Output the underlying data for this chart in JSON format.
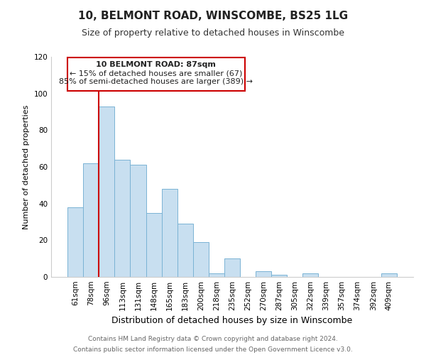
{
  "title": "10, BELMONT ROAD, WINSCOMBE, BS25 1LG",
  "subtitle": "Size of property relative to detached houses in Winscombe",
  "xlabel": "Distribution of detached houses by size in Winscombe",
  "ylabel": "Number of detached properties",
  "bar_labels": [
    "61sqm",
    "78sqm",
    "96sqm",
    "113sqm",
    "131sqm",
    "148sqm",
    "165sqm",
    "183sqm",
    "200sqm",
    "218sqm",
    "235sqm",
    "252sqm",
    "270sqm",
    "287sqm",
    "305sqm",
    "322sqm",
    "339sqm",
    "357sqm",
    "374sqm",
    "392sqm",
    "409sqm"
  ],
  "bar_heights": [
    38,
    62,
    93,
    64,
    61,
    35,
    48,
    29,
    19,
    2,
    10,
    0,
    3,
    1,
    0,
    2,
    0,
    0,
    0,
    0,
    2
  ],
  "bar_color": "#c8dff0",
  "bar_edge_color": "#7ab3d4",
  "vline_color": "#cc0000",
  "annotation_text_line1": "10 BELMONT ROAD: 87sqm",
  "annotation_text_line2": "← 15% of detached houses are smaller (67)",
  "annotation_text_line3": "85% of semi-detached houses are larger (389) →",
  "annotation_box_color": "#cc0000",
  "ylim": [
    0,
    120
  ],
  "yticks": [
    0,
    20,
    40,
    60,
    80,
    100,
    120
  ],
  "footer_line1": "Contains HM Land Registry data © Crown copyright and database right 2024.",
  "footer_line2": "Contains public sector information licensed under the Open Government Licence v3.0.",
  "title_fontsize": 11,
  "subtitle_fontsize": 9,
  "xlabel_fontsize": 9,
  "ylabel_fontsize": 8,
  "tick_fontsize": 7.5,
  "footer_fontsize": 6.5,
  "annotation_fontsize": 8,
  "background_color": "#ffffff"
}
